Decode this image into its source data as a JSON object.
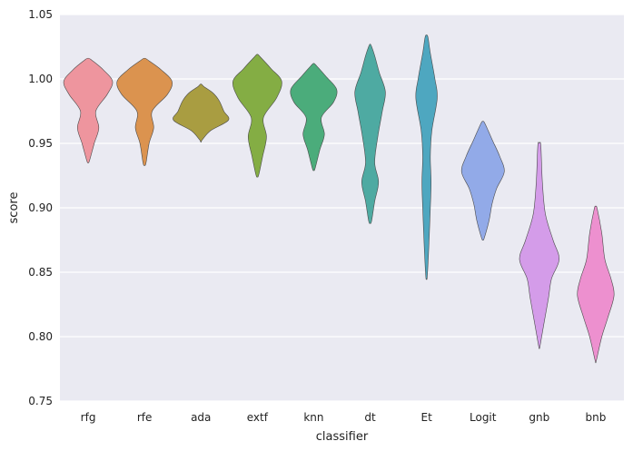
{
  "chart_data": {
    "type": "violin",
    "title": "",
    "xlabel": "classifier",
    "ylabel": "score",
    "ylim": [
      0.75,
      1.05
    ],
    "yticks": [
      "0.75",
      "0.80",
      "0.85",
      "0.90",
      "0.95",
      "1.00",
      "1.05"
    ],
    "grid": true,
    "background": "#eaeaf2",
    "categories": [
      "rfg",
      "rfe",
      "ada",
      "extf",
      "knn",
      "dt",
      "Et",
      "Logit",
      "gnb",
      "bnb"
    ],
    "series": [
      {
        "category": "rfg",
        "color": "#ee959e",
        "profile": [
          [
            0.937,
            0.002
          ],
          [
            0.95,
            0.008
          ],
          [
            0.962,
            0.014
          ],
          [
            0.975,
            0.01
          ],
          [
            0.988,
            0.025
          ],
          [
            0.998,
            0.032
          ],
          [
            1.007,
            0.02
          ],
          [
            1.014,
            0.006
          ]
        ]
      },
      {
        "category": "rfe",
        "color": "#db934f",
        "profile": [
          [
            0.935,
            0.002
          ],
          [
            0.95,
            0.006
          ],
          [
            0.962,
            0.012
          ],
          [
            0.975,
            0.01
          ],
          [
            0.988,
            0.03
          ],
          [
            0.998,
            0.036
          ],
          [
            1.007,
            0.022
          ],
          [
            1.014,
            0.006
          ]
        ]
      },
      {
        "category": "ada",
        "color": "#a99d41",
        "profile": [
          [
            0.953,
            0.002
          ],
          [
            0.96,
            0.013
          ],
          [
            0.968,
            0.036
          ],
          [
            0.975,
            0.03
          ],
          [
            0.983,
            0.024
          ],
          [
            0.989,
            0.016
          ],
          [
            0.994,
            0.004
          ]
        ]
      },
      {
        "category": "extf",
        "color": "#84ad44",
        "profile": [
          [
            0.926,
            0.002
          ],
          [
            0.94,
            0.007
          ],
          [
            0.955,
            0.012
          ],
          [
            0.97,
            0.008
          ],
          [
            0.985,
            0.025
          ],
          [
            0.998,
            0.032
          ],
          [
            1.008,
            0.018
          ],
          [
            1.017,
            0.004
          ]
        ]
      },
      {
        "category": "knn",
        "color": "#4bac7b",
        "profile": [
          [
            0.931,
            0.002
          ],
          [
            0.945,
            0.008
          ],
          [
            0.957,
            0.014
          ],
          [
            0.97,
            0.01
          ],
          [
            0.982,
            0.026
          ],
          [
            0.992,
            0.03
          ],
          [
            1.002,
            0.016
          ],
          [
            1.01,
            0.004
          ]
        ]
      },
      {
        "category": "dt",
        "color": "#4eaaa2",
        "profile": [
          [
            0.89,
            0.002
          ],
          [
            0.905,
            0.006
          ],
          [
            0.92,
            0.011
          ],
          [
            0.935,
            0.006
          ],
          [
            0.955,
            0.01
          ],
          [
            0.975,
            0.016
          ],
          [
            0.99,
            0.02
          ],
          [
            1.005,
            0.012
          ],
          [
            1.018,
            0.006
          ],
          [
            1.025,
            0.002
          ]
        ]
      },
      {
        "category": "Et",
        "color": "#4ea7c0",
        "profile": [
          [
            0.847,
            0.001
          ],
          [
            0.87,
            0.003
          ],
          [
            0.9,
            0.005
          ],
          [
            0.92,
            0.006
          ],
          [
            0.94,
            0.005
          ],
          [
            0.96,
            0.007
          ],
          [
            0.985,
            0.014
          ],
          [
            1.0,
            0.011
          ],
          [
            1.02,
            0.005
          ],
          [
            1.032,
            0.002
          ]
        ]
      },
      {
        "category": "Logit",
        "color": "#92aae8",
        "profile": [
          [
            0.877,
            0.002
          ],
          [
            0.89,
            0.008
          ],
          [
            0.903,
            0.012
          ],
          [
            0.915,
            0.018
          ],
          [
            0.928,
            0.028
          ],
          [
            0.94,
            0.022
          ],
          [
            0.953,
            0.012
          ],
          [
            0.965,
            0.003
          ]
        ]
      },
      {
        "category": "gnb",
        "color": "#d49ce9",
        "profile": [
          [
            0.793,
            0.001
          ],
          [
            0.81,
            0.006
          ],
          [
            0.83,
            0.012
          ],
          [
            0.845,
            0.016
          ],
          [
            0.86,
            0.026
          ],
          [
            0.875,
            0.018
          ],
          [
            0.895,
            0.008
          ],
          [
            0.92,
            0.004
          ],
          [
            0.948,
            0.002
          ]
        ]
      },
      {
        "category": "bnb",
        "color": "#ed90cf",
        "profile": [
          [
            0.782,
            0.001
          ],
          [
            0.8,
            0.008
          ],
          [
            0.815,
            0.016
          ],
          [
            0.832,
            0.024
          ],
          [
            0.845,
            0.02
          ],
          [
            0.86,
            0.012
          ],
          [
            0.88,
            0.008
          ],
          [
            0.899,
            0.002
          ]
        ]
      }
    ]
  }
}
